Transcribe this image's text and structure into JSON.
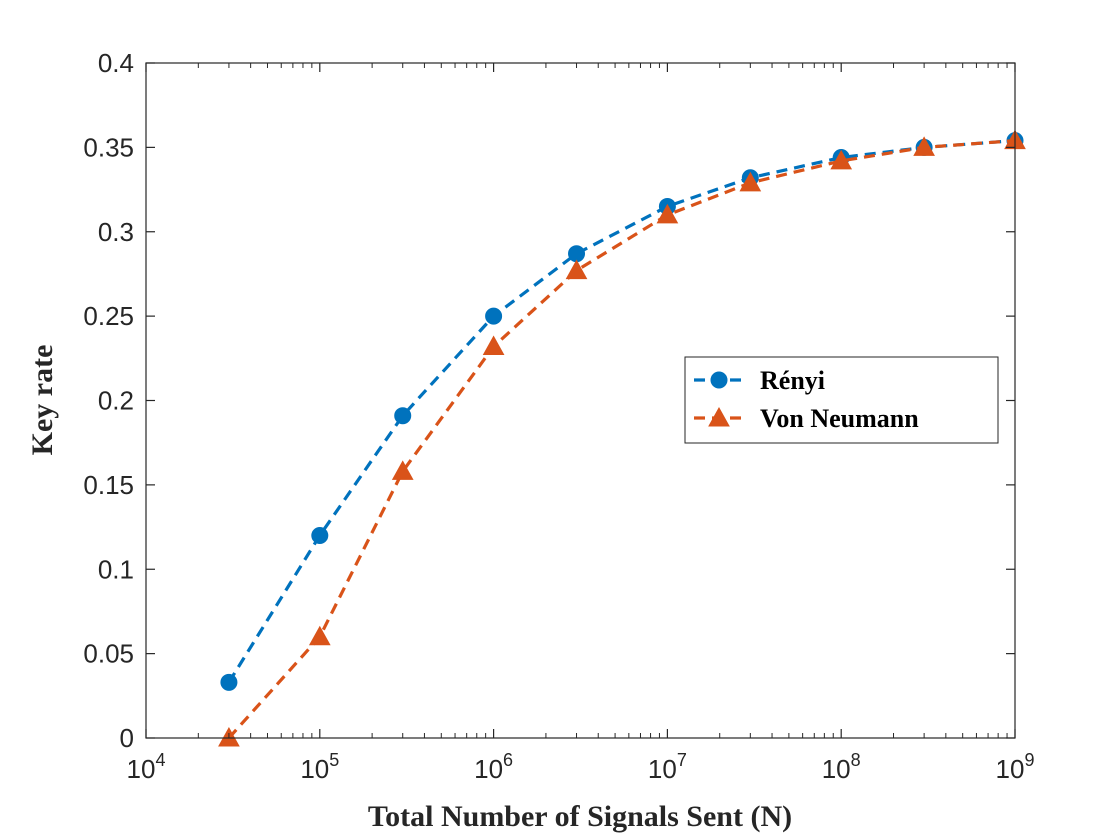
{
  "chart_data": {
    "type": "line",
    "title": "",
    "xlabel": "Total Number of Signals Sent (N)",
    "ylabel": "Key rate",
    "xscale": "log",
    "xlim": [
      10000,
      1000000000
    ],
    "ylim": [
      0,
      0.4
    ],
    "grid": false,
    "legend_position": "right",
    "x_ticks": [
      {
        "base": "10",
        "exp": "4",
        "value": 10000
      },
      {
        "base": "10",
        "exp": "5",
        "value": 100000
      },
      {
        "base": "10",
        "exp": "6",
        "value": 1000000
      },
      {
        "base": "10",
        "exp": "7",
        "value": 10000000
      },
      {
        "base": "10",
        "exp": "8",
        "value": 100000000
      },
      {
        "base": "10",
        "exp": "9",
        "value": 1000000000
      }
    ],
    "y_ticks": [
      {
        "label": "0",
        "value": 0
      },
      {
        "label": "0.05",
        "value": 0.05
      },
      {
        "label": "0.1",
        "value": 0.1
      },
      {
        "label": "0.15",
        "value": 0.15
      },
      {
        "label": "0.2",
        "value": 0.2
      },
      {
        "label": "0.25",
        "value": 0.25
      },
      {
        "label": "0.3",
        "value": 0.3
      },
      {
        "label": "0.35",
        "value": 0.35
      },
      {
        "label": "0.4",
        "value": 0.4
      }
    ],
    "x": [
      30000,
      100000,
      300000,
      1000000,
      3000000,
      10000000,
      30000000,
      100000000,
      300000000,
      1000000000
    ],
    "series": [
      {
        "name": "Rényi",
        "color": "#0072BD",
        "marker": "circle",
        "values": [
          0.033,
          0.12,
          0.191,
          0.25,
          0.287,
          0.315,
          0.332,
          0.344,
          0.35,
          0.354
        ]
      },
      {
        "name": "Von Neumann",
        "color": "#D95319",
        "marker": "triangle",
        "values": [
          0.0,
          0.06,
          0.158,
          0.232,
          0.277,
          0.31,
          0.329,
          0.342,
          0.35,
          0.354
        ]
      }
    ]
  }
}
